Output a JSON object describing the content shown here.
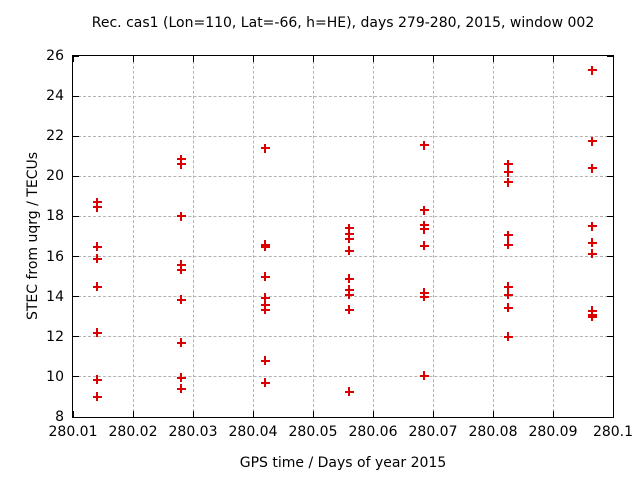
{
  "chart_data": {
    "type": "scatter",
    "title": "Rec. cas1 (Lon=110, Lat=-66, h=HE), days 279-280, 2015, window 002",
    "xlabel": "GPS time / Days of year 2015",
    "ylabel": "STEC from uqrg / TECUs",
    "xlim": [
      280.01,
      280.1
    ],
    "ylim": [
      8,
      26
    ],
    "xticks": [
      280.01,
      280.02,
      280.03,
      280.04,
      280.05,
      280.06,
      280.07,
      280.08,
      280.09,
      280.1
    ],
    "xtick_labels": [
      "280.01",
      "280.02",
      "280.03",
      "280.04",
      "280.05",
      "280.06",
      "280.07",
      "280.08",
      "280.09",
      "280.1"
    ],
    "yticks": [
      8,
      10,
      12,
      14,
      16,
      18,
      20,
      22,
      24,
      26
    ],
    "grid": true,
    "grid_style": "dashed",
    "grid_color": "#b3b3b3",
    "marker": "plus",
    "marker_color": "#dd0000",
    "legend": "none",
    "series": [
      {
        "name": "STEC",
        "points": [
          [
            280.014,
            18.7
          ],
          [
            280.014,
            18.45
          ],
          [
            280.014,
            16.5
          ],
          [
            280.014,
            15.9
          ],
          [
            280.014,
            14.5
          ],
          [
            280.014,
            12.2
          ],
          [
            280.014,
            9.85
          ],
          [
            280.014,
            9.0
          ],
          [
            280.028,
            20.85
          ],
          [
            280.028,
            20.6
          ],
          [
            280.028,
            18.0
          ],
          [
            280.028,
            15.6
          ],
          [
            280.028,
            15.35
          ],
          [
            280.028,
            13.85
          ],
          [
            280.028,
            11.7
          ],
          [
            280.028,
            9.95
          ],
          [
            280.028,
            9.4
          ],
          [
            280.042,
            21.4
          ],
          [
            280.042,
            16.6
          ],
          [
            280.042,
            16.5
          ],
          [
            280.042,
            15.0
          ],
          [
            280.042,
            13.95
          ],
          [
            280.042,
            13.6
          ],
          [
            280.042,
            13.35
          ],
          [
            280.042,
            10.8
          ],
          [
            280.042,
            9.7
          ],
          [
            280.056,
            17.4
          ],
          [
            280.056,
            17.1
          ],
          [
            280.056,
            16.9
          ],
          [
            280.056,
            16.3
          ],
          [
            280.056,
            14.9
          ],
          [
            280.056,
            14.35
          ],
          [
            280.056,
            14.1
          ],
          [
            280.056,
            13.35
          ],
          [
            280.056,
            9.25
          ],
          [
            280.0685,
            21.55
          ],
          [
            280.0685,
            18.3
          ],
          [
            280.0685,
            17.55
          ],
          [
            280.0685,
            17.35
          ],
          [
            280.0685,
            16.55
          ],
          [
            280.0685,
            14.2
          ],
          [
            280.0685,
            14.0
          ],
          [
            280.0685,
            10.05
          ],
          [
            280.0825,
            20.6
          ],
          [
            280.0825,
            20.2
          ],
          [
            280.0825,
            19.7
          ],
          [
            280.0825,
            17.05
          ],
          [
            280.0825,
            16.6
          ],
          [
            280.0825,
            14.5
          ],
          [
            280.0825,
            14.1
          ],
          [
            280.0825,
            13.45
          ],
          [
            280.0825,
            12.0
          ],
          [
            280.0965,
            25.3
          ],
          [
            280.0965,
            21.75
          ],
          [
            280.0965,
            20.4
          ],
          [
            280.0965,
            17.5
          ],
          [
            280.0965,
            16.7
          ],
          [
            280.0965,
            16.15
          ],
          [
            280.0965,
            13.3
          ],
          [
            280.0965,
            13.1
          ],
          [
            280.0965,
            13.0
          ]
        ]
      }
    ]
  }
}
